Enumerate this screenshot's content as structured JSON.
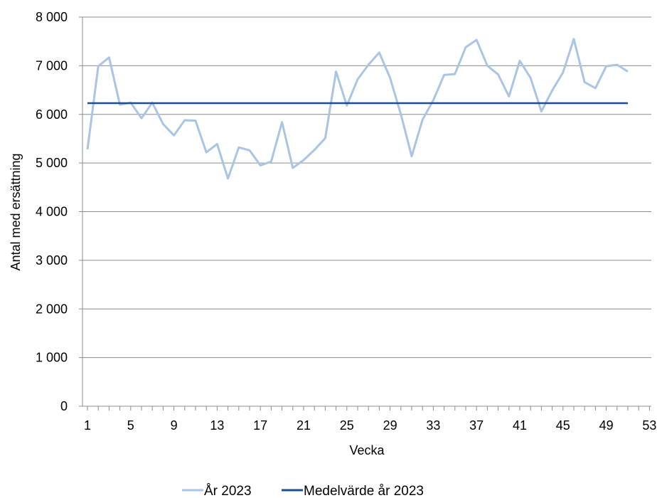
{
  "chart_data": {
    "type": "line",
    "xlabel": "Vecka",
    "ylabel": "Antal med ersättning",
    "xlim": [
      1,
      53
    ],
    "ylim": [
      0,
      8000
    ],
    "x_ticks": [
      "1",
      "5",
      "9",
      "13",
      "17",
      "21",
      "25",
      "29",
      "33",
      "37",
      "41",
      "45",
      "49",
      "53"
    ],
    "y_ticks": [
      "0",
      "1 000",
      "2 000",
      "3 000",
      "4 000",
      "5 000",
      "6 000",
      "7 000",
      "8 000"
    ],
    "x": [
      1,
      2,
      3,
      4,
      5,
      6,
      7,
      8,
      9,
      10,
      11,
      12,
      13,
      14,
      15,
      16,
      17,
      18,
      19,
      20,
      21,
      22,
      23,
      24,
      25,
      26,
      27,
      28,
      29,
      30,
      31,
      32,
      33,
      34,
      35,
      36,
      37,
      38,
      39,
      40,
      41,
      42,
      43,
      44,
      45,
      46,
      47,
      48,
      49,
      50,
      51
    ],
    "grid": "horizontal",
    "legend_position": "bottom",
    "series": [
      {
        "name": "År 2023",
        "color": "#a9c4e4",
        "values": [
          5280,
          6990,
          7170,
          6200,
          6240,
          5920,
          6240,
          5800,
          5570,
          5880,
          5870,
          5220,
          5390,
          4680,
          5320,
          5260,
          4950,
          5030,
          5840,
          4900,
          5060,
          5270,
          5510,
          6880,
          6180,
          6720,
          7020,
          7270,
          6750,
          6000,
          5140,
          5890,
          6290,
          6810,
          6830,
          7380,
          7530,
          7000,
          6820,
          6370,
          7100,
          6750,
          6060,
          6490,
          6860,
          7550,
          6660,
          6540,
          6990,
          7020,
          6880
        ]
      },
      {
        "name": "Medelvärde år 2023",
        "color": "#1f4e8a",
        "values": [
          6230,
          6230,
          6230,
          6230,
          6230,
          6230,
          6230,
          6230,
          6230,
          6230,
          6230,
          6230,
          6230,
          6230,
          6230,
          6230,
          6230,
          6230,
          6230,
          6230,
          6230,
          6230,
          6230,
          6230,
          6230,
          6230,
          6230,
          6230,
          6230,
          6230,
          6230,
          6230,
          6230,
          6230,
          6230,
          6230,
          6230,
          6230,
          6230,
          6230,
          6230,
          6230,
          6230,
          6230,
          6230,
          6230,
          6230,
          6230,
          6230,
          6230,
          6230
        ]
      }
    ]
  }
}
